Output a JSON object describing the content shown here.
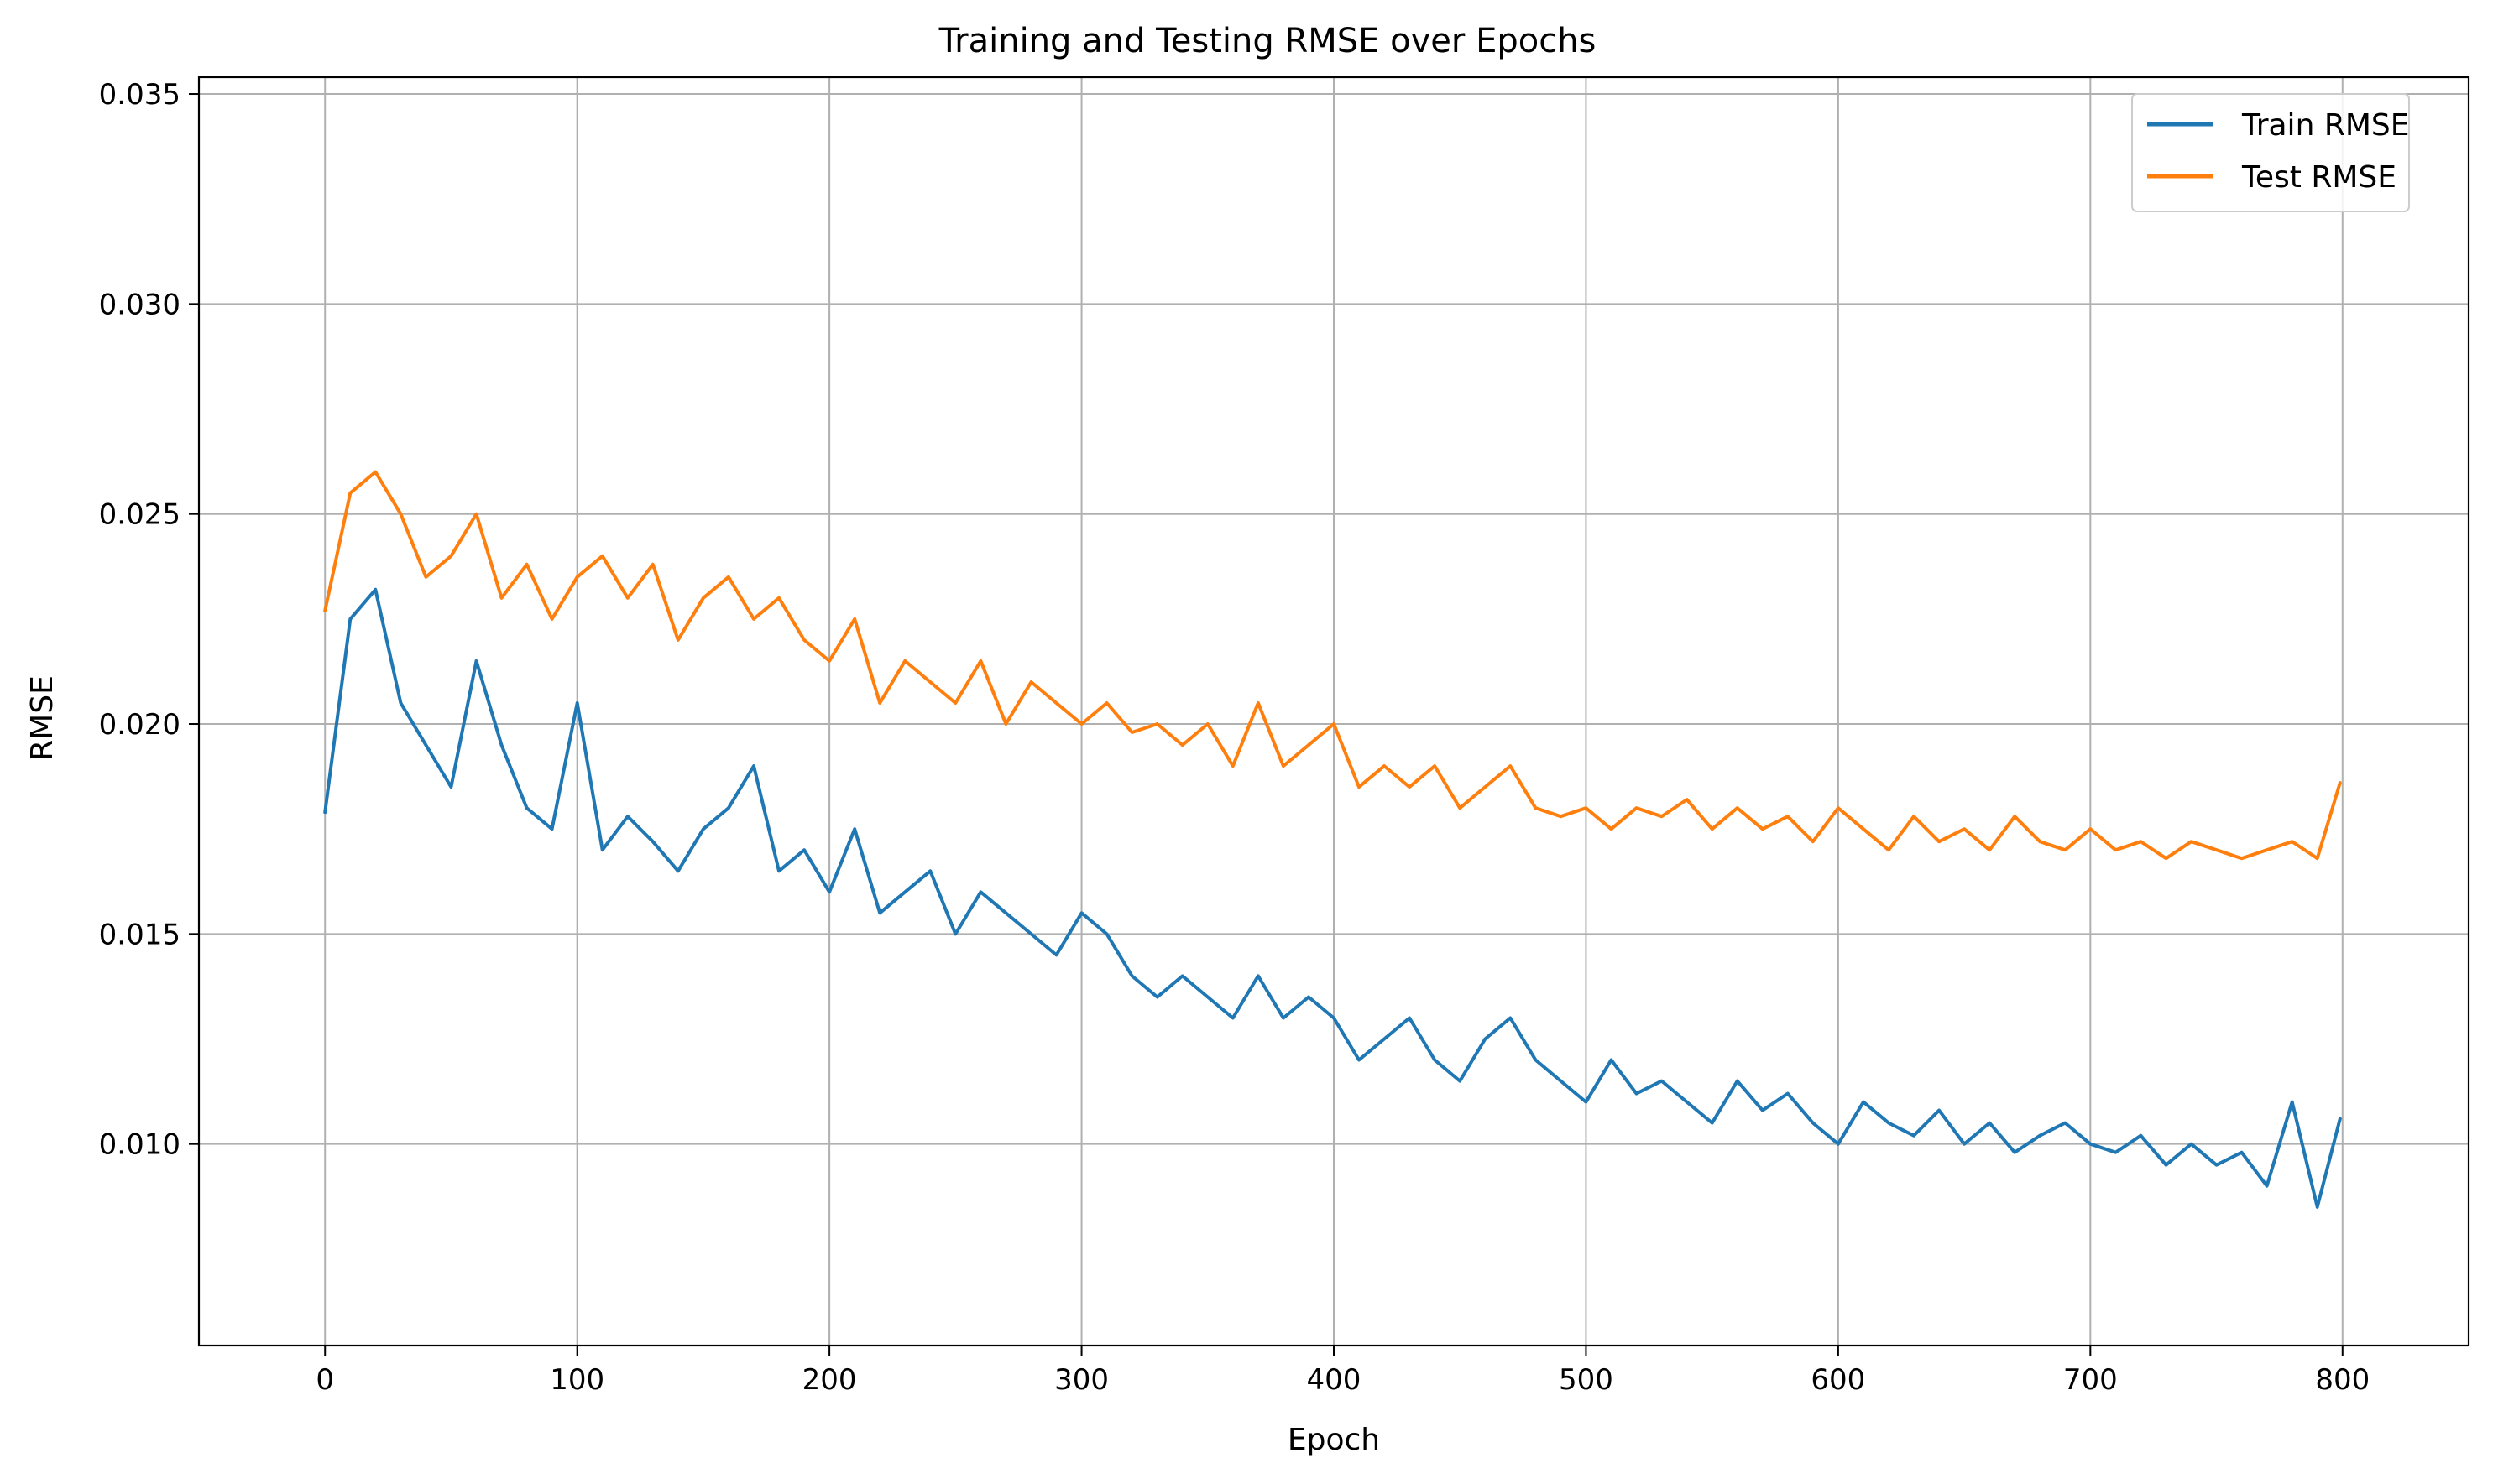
{
  "chart_data": {
    "type": "line",
    "title": "Training and Testing RMSE over Epochs",
    "xlabel": "Epoch",
    "ylabel": "RMSE",
    "xlim": [
      -50,
      850
    ],
    "ylim": [
      0.0052,
      0.0354
    ],
    "xticks": [
      0,
      100,
      200,
      300,
      400,
      500,
      600,
      700,
      800
    ],
    "yticks": [
      0.01,
      0.015,
      0.02,
      0.025,
      0.03,
      0.035
    ],
    "ytick_labels": [
      "0.010",
      "0.015",
      "0.020",
      "0.025",
      "0.030",
      "0.035"
    ],
    "grid": true,
    "legend": "top-right",
    "colors": {
      "train": "#1f77b4",
      "test": "#ff7f0e",
      "grid": "#b0b0b0"
    },
    "x": [
      0,
      10,
      20,
      30,
      40,
      50,
      60,
      70,
      80,
      90,
      100,
      110,
      120,
      130,
      140,
      150,
      160,
      170,
      180,
      190,
      200,
      210,
      220,
      230,
      240,
      250,
      260,
      270,
      280,
      290,
      300,
      310,
      320,
      330,
      340,
      350,
      360,
      370,
      380,
      390,
      400,
      410,
      420,
      430,
      440,
      450,
      460,
      470,
      480,
      490,
      500,
      510,
      520,
      530,
      540,
      550,
      560,
      570,
      580,
      590,
      600,
      610,
      620,
      630,
      640,
      650,
      660,
      670,
      680,
      690,
      700,
      710,
      720,
      730,
      740,
      750,
      760,
      770,
      780,
      790,
      799
    ],
    "series": [
      {
        "name": "Train RMSE",
        "values": [
          0.0179,
          0.0225,
          0.0232,
          0.0205,
          0.0195,
          0.0185,
          0.0215,
          0.0195,
          0.018,
          0.0175,
          0.0205,
          0.017,
          0.0178,
          0.0172,
          0.0165,
          0.0175,
          0.018,
          0.019,
          0.0165,
          0.017,
          0.016,
          0.0175,
          0.0155,
          0.016,
          0.0165,
          0.015,
          0.016,
          0.0155,
          0.015,
          0.0145,
          0.0155,
          0.015,
          0.014,
          0.0135,
          0.014,
          0.0135,
          0.013,
          0.014,
          0.013,
          0.0135,
          0.013,
          0.012,
          0.0125,
          0.013,
          0.012,
          0.0115,
          0.0125,
          0.013,
          0.012,
          0.0115,
          0.011,
          0.012,
          0.0112,
          0.0115,
          0.011,
          0.0105,
          0.0115,
          0.0108,
          0.0112,
          0.0105,
          0.01,
          0.011,
          0.0105,
          0.0102,
          0.0108,
          0.01,
          0.0105,
          0.0098,
          0.0102,
          0.0105,
          0.01,
          0.0098,
          0.0102,
          0.0095,
          0.01,
          0.0095,
          0.0098,
          0.009,
          0.011,
          0.0085,
          0.0106
        ]
      },
      {
        "name": "Test RMSE",
        "values": [
          0.0227,
          0.0255,
          0.026,
          0.025,
          0.0235,
          0.024,
          0.025,
          0.023,
          0.0238,
          0.0225,
          0.0235,
          0.024,
          0.023,
          0.0238,
          0.022,
          0.023,
          0.0235,
          0.0225,
          0.023,
          0.022,
          0.0215,
          0.0225,
          0.0205,
          0.0215,
          0.021,
          0.0205,
          0.0215,
          0.02,
          0.021,
          0.0205,
          0.02,
          0.0205,
          0.0198,
          0.02,
          0.0195,
          0.02,
          0.019,
          0.0205,
          0.019,
          0.0195,
          0.02,
          0.0185,
          0.019,
          0.0185,
          0.019,
          0.018,
          0.0185,
          0.019,
          0.018,
          0.0178,
          0.018,
          0.0175,
          0.018,
          0.0178,
          0.0182,
          0.0175,
          0.018,
          0.0175,
          0.0178,
          0.0172,
          0.018,
          0.0175,
          0.017,
          0.0178,
          0.0172,
          0.0175,
          0.017,
          0.0178,
          0.0172,
          0.017,
          0.0175,
          0.017,
          0.0172,
          0.0168,
          0.0172,
          0.017,
          0.0168,
          0.017,
          0.0172,
          0.0168,
          0.0186
        ]
      }
    ]
  }
}
